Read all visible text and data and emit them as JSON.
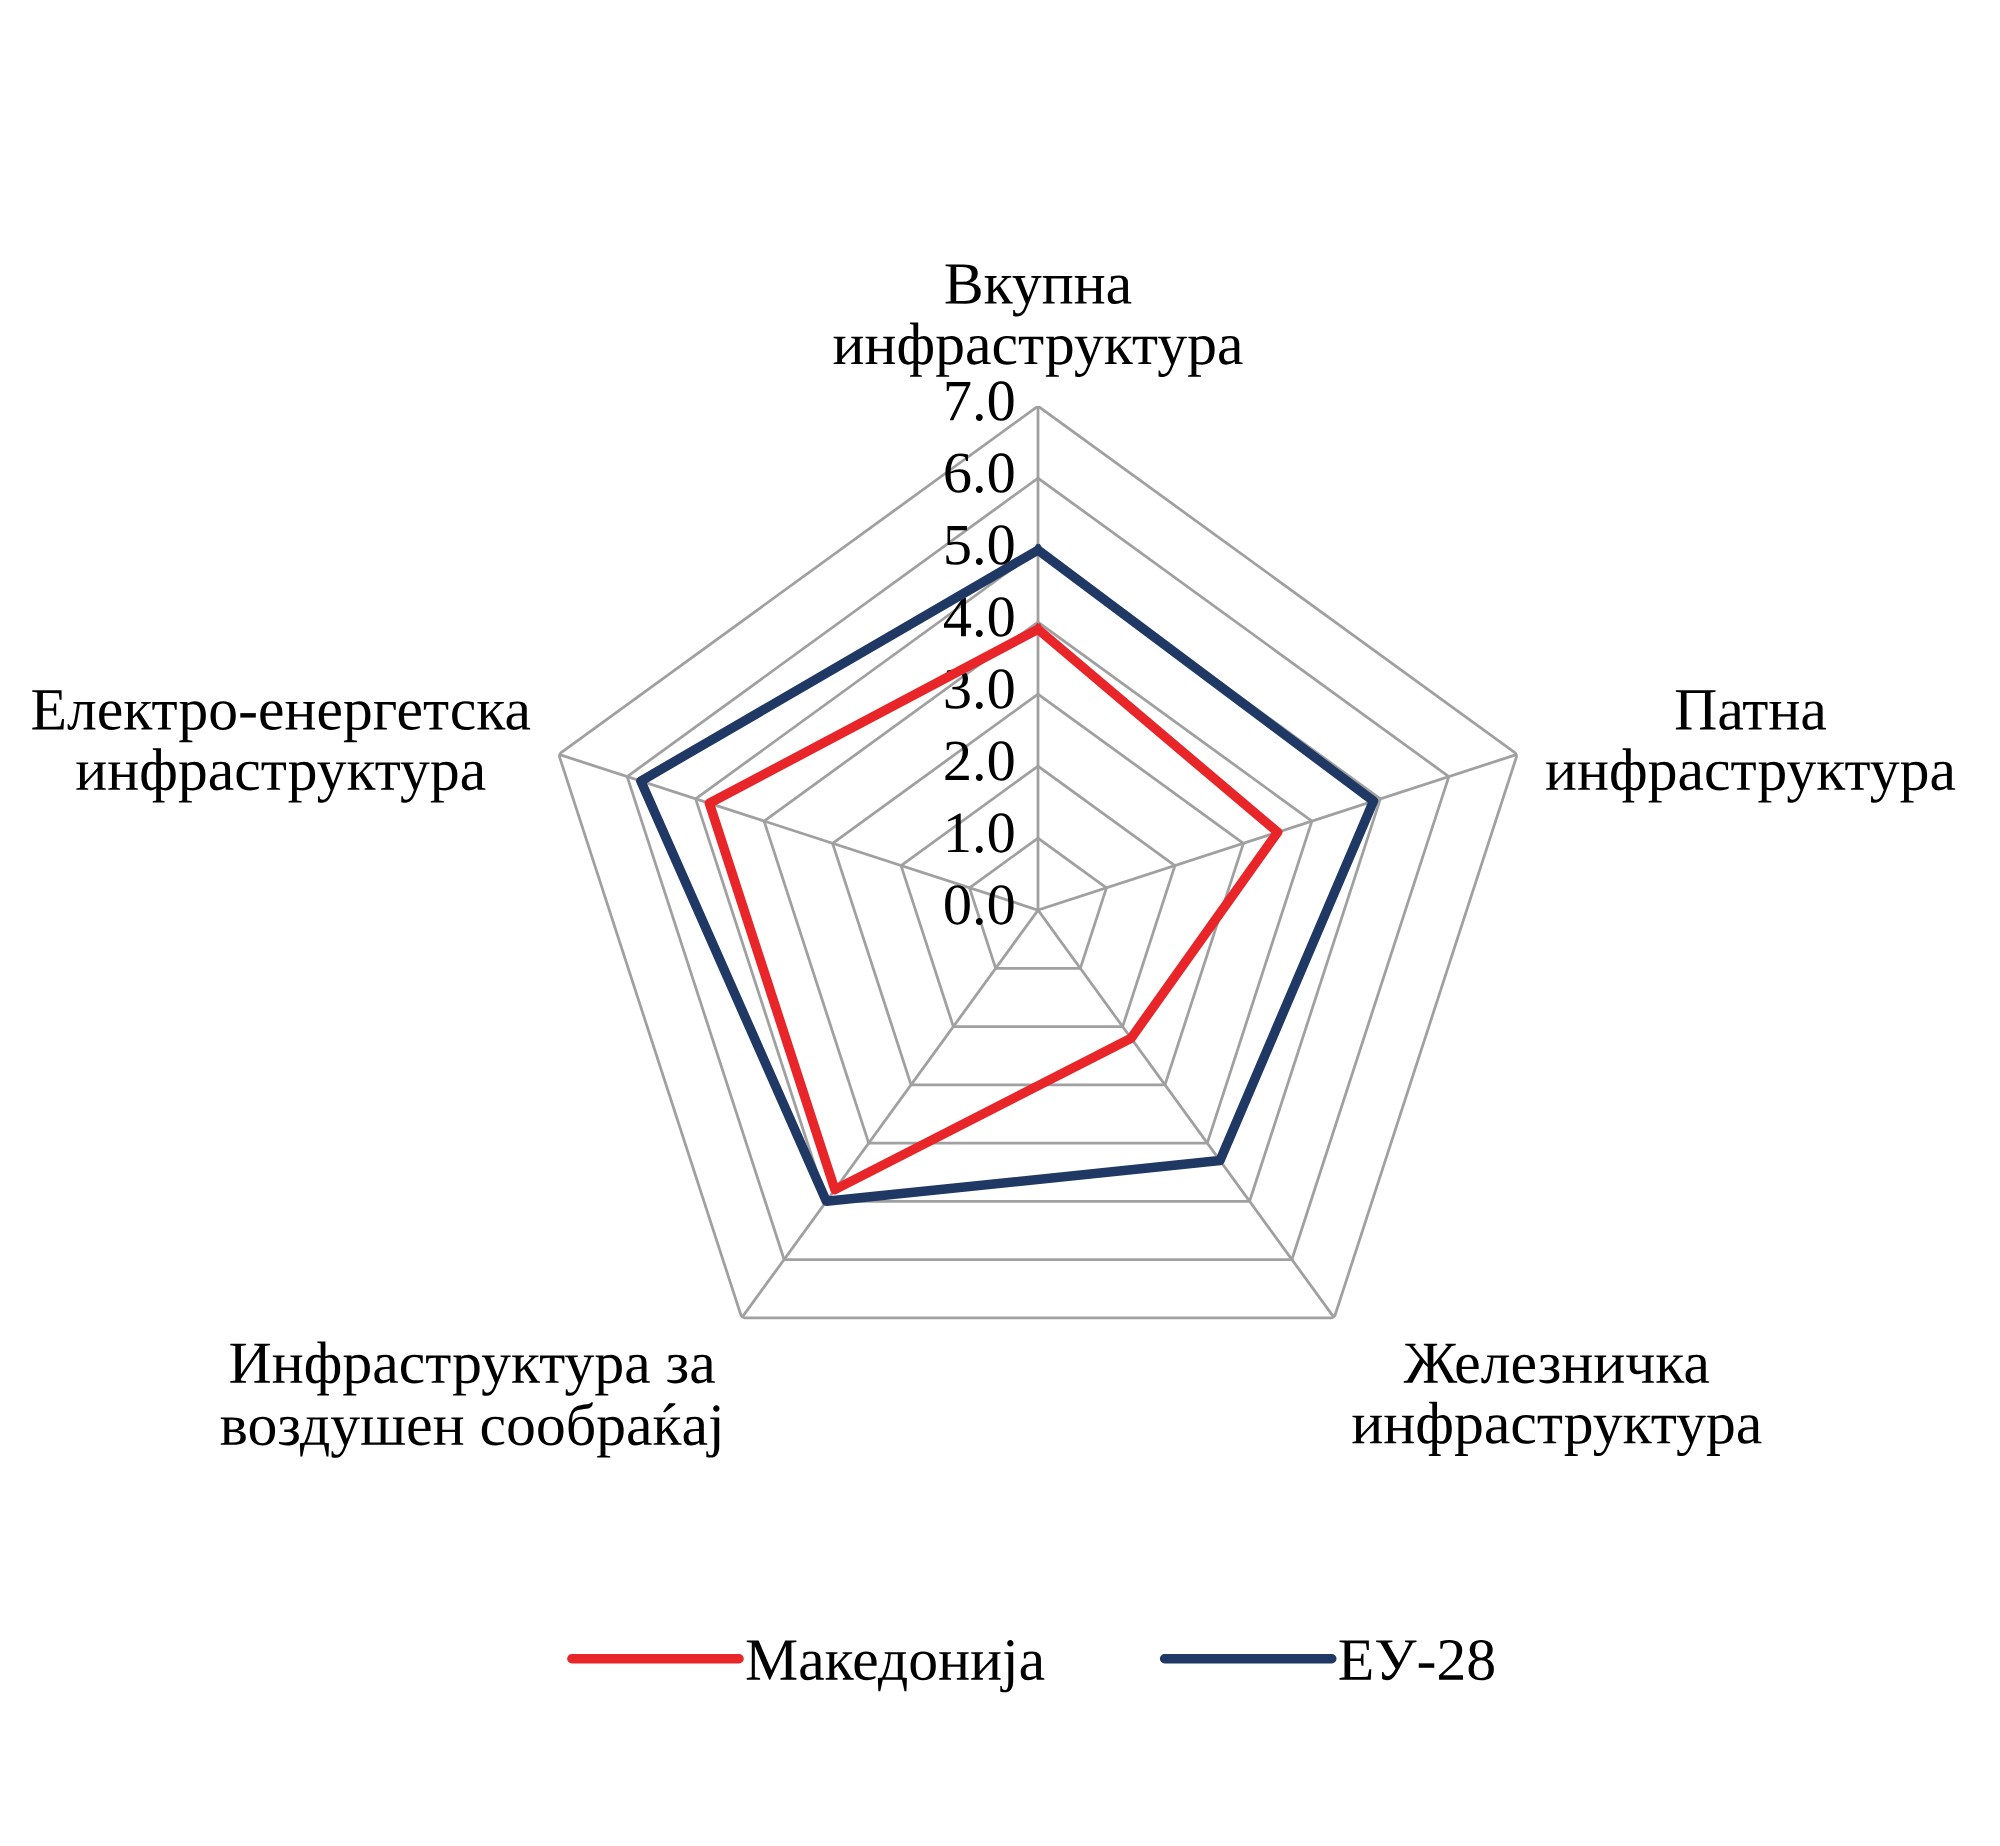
{
  "chart_data": {
    "type": "radar",
    "categories": [
      "Вкупна\nинфраструктура",
      "Патна\nинфраструктура",
      "Железничка\nинфраструктура",
      "Инфраструктура за\nвоздушен сообраќај",
      "Електро-енергетска\nинфраструктура"
    ],
    "series": [
      {
        "name": "Македонија",
        "color": "#e8262a",
        "values": [
          3.9,
          3.5,
          2.2,
          4.8,
          4.8
        ]
      },
      {
        "name": "ЕУ-28",
        "color": "#1f3864",
        "values": [
          5.0,
          4.9,
          4.3,
          5.0,
          5.8
        ]
      }
    ],
    "ylim": [
      0,
      7
    ],
    "yticks": [
      {
        "value": 0,
        "label": "0.0"
      },
      {
        "value": 1,
        "label": "1.0"
      },
      {
        "value": 2,
        "label": "2.0"
      },
      {
        "value": 3,
        "label": "3.0"
      },
      {
        "value": 4,
        "label": "4.0"
      },
      {
        "value": 5,
        "label": "5.0"
      },
      {
        "value": 6,
        "label": "6.0"
      },
      {
        "value": 7,
        "label": "7.0"
      }
    ],
    "grid": true,
    "legend": "bottom"
  }
}
